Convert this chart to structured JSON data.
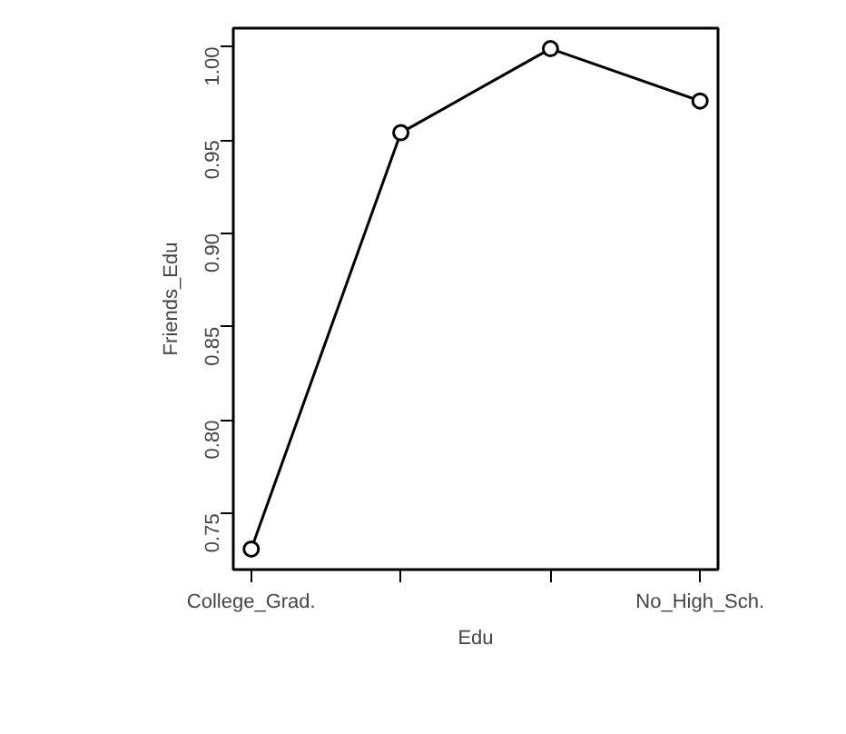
{
  "chart_data": {
    "type": "line",
    "xlabel": "Edu",
    "ylabel": "Friends_Edu",
    "categories": [
      "College_Grad.",
      null,
      null,
      "No_High_Sch."
    ],
    "values": [
      0.731,
      0.954,
      0.999,
      0.971
    ],
    "color": "#000000",
    "marker": "circle",
    "line_style": "solid",
    "grid": false,
    "ylim": [
      0.72,
      1.01
    ],
    "yticks": [
      {
        "value": 0.75,
        "label": "0.75"
      },
      {
        "value": 0.8,
        "label": "0.80"
      },
      {
        "value": 0.85,
        "label": "0.85"
      },
      {
        "value": 0.9,
        "label": "0.90"
      },
      {
        "value": 0.95,
        "label": "0.95"
      },
      {
        "value": 1.0,
        "label": "1.00"
      }
    ]
  }
}
